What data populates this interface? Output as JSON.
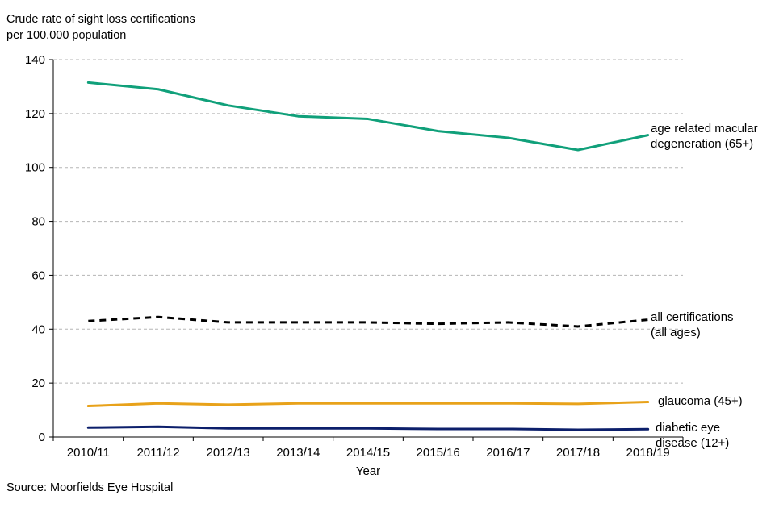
{
  "chart_data": {
    "type": "line",
    "ylabel_lines": [
      "Crude rate of sight loss certifications",
      "per 100,000 population"
    ],
    "xlabel": "Year",
    "source": "Source: Moorfields Eye Hospital",
    "categories": [
      "2010/11",
      "2011/12",
      "2012/13",
      "2013/14",
      "2014/15",
      "2015/16",
      "2016/17",
      "2017/18",
      "2018/19"
    ],
    "ylim": [
      0,
      140
    ],
    "yticks": [
      "0",
      "20",
      "40",
      "60",
      "80",
      "100",
      "120",
      "140"
    ],
    "grid": true,
    "series": [
      {
        "name": "age related macular degeneration (65+)",
        "label_lines": [
          "age related macular",
          "degeneration (65+)"
        ],
        "color": "#10a07a",
        "dashed": false,
        "values": [
          131.5,
          129,
          123,
          119,
          118,
          113.5,
          111,
          106.5,
          112
        ]
      },
      {
        "name": "all certifications (all ages)",
        "label_lines": [
          "all certifications",
          "(all ages)"
        ],
        "color": "#000000",
        "dashed": true,
        "values": [
          43,
          44.5,
          42.5,
          42.5,
          42.5,
          42,
          42.5,
          41,
          43.5
        ]
      },
      {
        "name": "glaucoma (45+)",
        "label_lines": [
          "glaucoma  (45+)"
        ],
        "color": "#e8a21a",
        "dashed": false,
        "values": [
          11.5,
          12.5,
          12,
          12.5,
          12.5,
          12.5,
          12.5,
          12.3,
          13
        ]
      },
      {
        "name": "diabetic eye disease (12+)",
        "label_lines": [
          "diabetic eye",
          "disease (12+)"
        ],
        "color": "#0c1f6b",
        "dashed": false,
        "values": [
          3.5,
          3.8,
          3.2,
          3.2,
          3.2,
          3,
          3,
          2.7,
          2.9
        ]
      }
    ]
  }
}
